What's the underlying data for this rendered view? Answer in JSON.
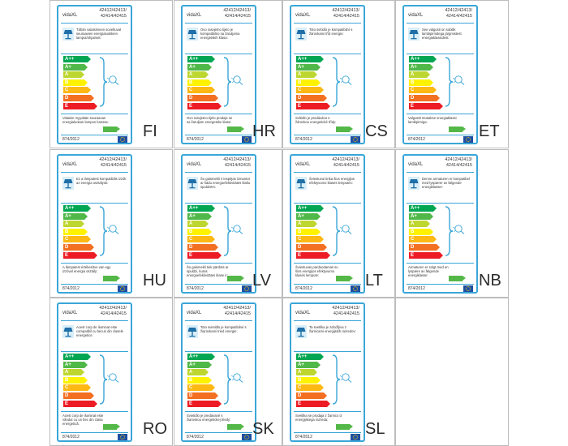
{
  "common": {
    "brand": "vidaXL",
    "models_line1": "42412/42413/",
    "models_line2": "42414/42415",
    "regulation": "874/2012",
    "class_label": "A+",
    "scale": [
      "A++",
      "A+",
      "A",
      "B",
      "C",
      "D",
      "E"
    ],
    "colors": [
      "#00a651",
      "#50b848",
      "#bed630",
      "#fff200",
      "#fdb813",
      "#f36f21",
      "#ed1c24"
    ],
    "accent": "#3aa6d8"
  },
  "labels": [
    {
      "code": "FI",
      "text1": "Tähän valaisimeen soveltuvat seuraavien energialuokkien lamput/ohjaimet:",
      "text2": "Valaisin myydään seuraavan energialuokan lampun kanssa:"
    },
    {
      "code": "HR",
      "text1": "Ovo rasvjetno tijelo je kompatibilno sa žaruljama energetskih klasa:",
      "text2": "Ovo rasvjetno tijelo prodaje se sa žaruljom energetske klase:"
    },
    {
      "code": "CS",
      "text1": "Toto svítidlo je kompatibilní s žárovkami tříd energie:",
      "text2": "Svítidlo je prodáváno s žárovkou energetické třídy:"
    },
    {
      "code": "ET",
      "text1": "See valgusti on sobilik lambipirnidega järgmistest energiaklassidest:",
      "text2": "Valgustit müüakse energiaklassi lambipirniga:"
    },
    {
      "code": "HU",
      "text1": "Ez a lámpatest kompatibilis izzók az energia osztályok:",
      "text2": "A lámpatest értékesítve van egy izzóval energia osztály:"
    },
    {
      "code": "LV",
      "text1": "Šo gaismekli ir iespējas izmantot ar šādu energoefektivitātes klašu spuldzēm:",
      "text2": "Šo gaismekli tiek pārdots ar spuldzi, kuras energoefektivitātes klase ir:"
    },
    {
      "code": "LT",
      "text1": "Šviestuvui tinka šios energijos efektyvumo klasės lemputės:",
      "text2": "Šviestuvas parduodamas su šios energijos efektyvumo klasės lempute:"
    },
    {
      "code": "NB",
      "text1": "Denne armaturen er kompatibel med lyspærer av følgende energiklasser:",
      "text2": "Armaturen er solgt med en lyspære av følgende energiklasse:"
    },
    {
      "code": "RO",
      "text1": "Acest corp de iluminat este compatibil cu becuri din clasele energetice:",
      "text2": "Acest corp de iluminat este vândut cu un bec din clasa energetică:"
    },
    {
      "code": "SK",
      "text1": "Toto svietidlo je kompatibilné s žiarovkami tried energie:",
      "text2": "Svietidlo je predávané s žiarovkou energetickej triedy:"
    },
    {
      "code": "SL",
      "text1": "Ta svetilka je združljiva z žarnicami energijskih razredov:",
      "text2": "Svetilka se prodaja z žarnico iz energijskega razreda:"
    }
  ]
}
